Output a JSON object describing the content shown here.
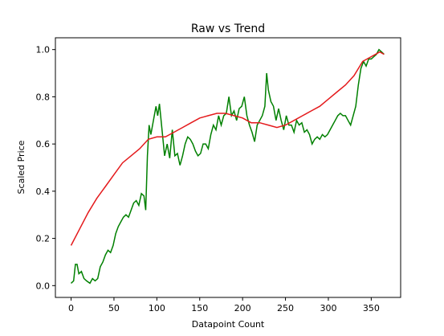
{
  "chart_data": {
    "type": "line",
    "title": "Raw vs Trend",
    "xlabel": "Datapoint Count",
    "ylabel": "Scaled Price",
    "xlim": [
      -18.3,
      384.3
    ],
    "ylim": [
      -0.05,
      1.05
    ],
    "xticks": [
      0,
      50,
      100,
      150,
      200,
      250,
      300,
      350
    ],
    "yticks": [
      {
        "value": 0,
        "label": "0.0"
      },
      {
        "value": 0.2,
        "label": "0.2"
      },
      {
        "value": 0.4,
        "label": "0.4"
      },
      {
        "value": 0.6,
        "label": "0.6"
      },
      {
        "value": 0.8,
        "label": "0.8"
      },
      {
        "value": 1,
        "label": "1.0"
      }
    ],
    "series": [
      {
        "color": "#008000",
        "x": [
          0,
          3,
          5,
          7,
          9,
          12,
          15,
          18,
          22,
          25,
          28,
          31,
          34,
          37,
          40,
          43,
          46,
          49,
          52,
          55,
          58,
          61,
          64,
          67,
          70,
          73,
          76,
          79,
          82,
          85,
          87,
          89,
          91,
          93,
          96,
          99,
          101,
          103,
          106,
          109,
          112,
          115,
          118,
          121,
          124,
          127,
          130,
          133,
          136,
          139,
          142,
          145,
          148,
          151,
          154,
          157,
          160,
          163,
          166,
          169,
          172,
          175,
          178,
          181,
          184,
          187,
          190,
          193,
          196,
          199,
          202,
          205,
          208,
          211,
          214,
          217,
          220,
          223,
          226,
          228,
          230,
          233,
          236,
          239,
          242,
          245,
          248,
          251,
          254,
          257,
          260,
          263,
          266,
          269,
          272,
          275,
          278,
          281,
          284,
          287,
          290,
          293,
          296,
          299,
          302,
          305,
          308,
          311,
          314,
          317,
          320,
          323,
          326,
          329,
          332,
          335,
          338,
          341,
          344,
          347,
          350,
          353,
          356,
          359,
          362,
          365
        ],
        "values": [
          0.01,
          0.02,
          0.09,
          0.09,
          0.05,
          0.06,
          0.03,
          0.02,
          0.01,
          0.03,
          0.02,
          0.03,
          0.08,
          0.1,
          0.13,
          0.15,
          0.14,
          0.17,
          0.22,
          0.25,
          0.27,
          0.29,
          0.3,
          0.29,
          0.32,
          0.35,
          0.36,
          0.34,
          0.39,
          0.38,
          0.32,
          0.55,
          0.68,
          0.64,
          0.7,
          0.76,
          0.72,
          0.77,
          0.66,
          0.55,
          0.6,
          0.54,
          0.66,
          0.55,
          0.56,
          0.51,
          0.55,
          0.6,
          0.63,
          0.62,
          0.6,
          0.57,
          0.55,
          0.56,
          0.6,
          0.6,
          0.58,
          0.64,
          0.68,
          0.66,
          0.72,
          0.68,
          0.72,
          0.73,
          0.8,
          0.72,
          0.74,
          0.7,
          0.75,
          0.76,
          0.8,
          0.72,
          0.68,
          0.65,
          0.61,
          0.68,
          0.7,
          0.72,
          0.76,
          0.9,
          0.83,
          0.78,
          0.76,
          0.7,
          0.75,
          0.7,
          0.66,
          0.72,
          0.68,
          0.68,
          0.65,
          0.7,
          0.68,
          0.69,
          0.65,
          0.66,
          0.64,
          0.6,
          0.62,
          0.63,
          0.62,
          0.64,
          0.63,
          0.64,
          0.66,
          0.68,
          0.7,
          0.72,
          0.73,
          0.72,
          0.72,
          0.7,
          0.68,
          0.72,
          0.76,
          0.85,
          0.92,
          0.95,
          0.93,
          0.96,
          0.96,
          0.97,
          0.98,
          1.0,
          0.99,
          0.98
        ]
      },
      {
        "color": "#e41a1c",
        "x": [
          0,
          10,
          20,
          30,
          40,
          50,
          60,
          70,
          80,
          90,
          100,
          110,
          120,
          130,
          140,
          150,
          160,
          170,
          180,
          190,
          200,
          210,
          220,
          230,
          240,
          250,
          260,
          270,
          280,
          290,
          300,
          310,
          320,
          330,
          340,
          350,
          360,
          365
        ],
        "values": [
          0.17,
          0.24,
          0.31,
          0.37,
          0.42,
          0.47,
          0.52,
          0.55,
          0.58,
          0.62,
          0.63,
          0.63,
          0.65,
          0.67,
          0.69,
          0.71,
          0.72,
          0.73,
          0.73,
          0.72,
          0.71,
          0.69,
          0.69,
          0.68,
          0.67,
          0.68,
          0.7,
          0.72,
          0.74,
          0.76,
          0.79,
          0.82,
          0.85,
          0.89,
          0.95,
          0.97,
          0.99,
          0.98
        ]
      }
    ]
  }
}
